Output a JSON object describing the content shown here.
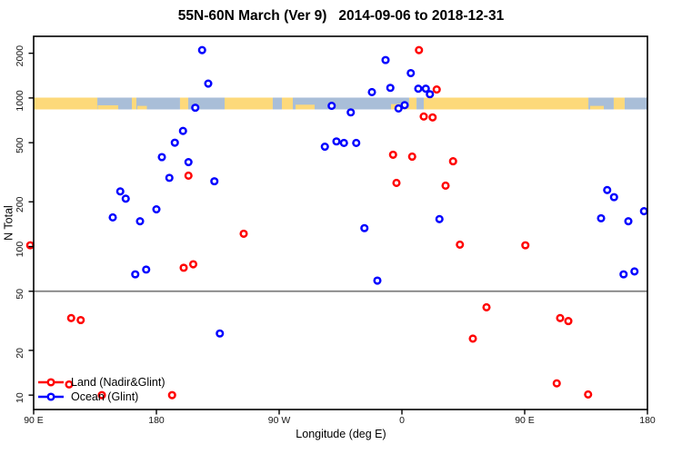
{
  "title": "55N-60N March (Ver 9)   2014-09-06 to 2018-12-31",
  "legend": {
    "entries": [
      {
        "label": "Land (Nadir&Glint)",
        "color": "#FF0000"
      },
      {
        "label": "Ocean (Glint)",
        "color": "#0000FF"
      }
    ]
  },
  "chart_data": {
    "type": "scatter",
    "title": "55N-60N March (Ver 9)   2014-09-06 to 2018-12-31",
    "xlabel": "Longitude (deg E)",
    "ylabel": "N Total",
    "x_axis": {
      "range": [
        90,
        540
      ],
      "ticks": [
        90,
        180,
        270,
        360,
        450,
        540
      ],
      "labels": [
        "90 E",
        "180",
        "90 W",
        "0",
        "90 E",
        "180"
      ]
    },
    "y_axis": {
      "scale": "log",
      "range": [
        8,
        2600
      ],
      "ticks": [
        10,
        20,
        50,
        100,
        200,
        500,
        1000,
        2000
      ]
    },
    "grid": "off",
    "legend_position": "bottom-left",
    "reference_line": {
      "y": 50,
      "color": "#7E7E7E"
    },
    "map_band": {
      "description": "land/ocean strip for 55N-60N drawn near N=1000",
      "land_color": "#FDD97A",
      "ocean_color": "#A9BED8",
      "segments": [
        {
          "from": 90,
          "to": 136.7,
          "type": "land"
        },
        {
          "from": 136.7,
          "to": 162,
          "type": "ocean"
        },
        {
          "from": 162,
          "to": 165.3,
          "type": "land"
        },
        {
          "from": 165.3,
          "to": 197.3,
          "type": "ocean"
        },
        {
          "from": 197.3,
          "to": 203.3,
          "type": "land"
        },
        {
          "from": 203.3,
          "to": 230,
          "type": "ocean"
        },
        {
          "from": 230,
          "to": 265.3,
          "type": "land"
        },
        {
          "from": 265.3,
          "to": 272,
          "type": "ocean"
        },
        {
          "from": 272,
          "to": 280,
          "type": "land"
        },
        {
          "from": 280,
          "to": 365.3,
          "type": "ocean"
        },
        {
          "from": 365.3,
          "to": 370.7,
          "type": "land"
        },
        {
          "from": 370.7,
          "to": 376,
          "type": "ocean"
        },
        {
          "from": 376,
          "to": 496.7,
          "type": "land"
        },
        {
          "from": 496.7,
          "to": 515.3,
          "type": "ocean"
        },
        {
          "from": 515.3,
          "to": 523.3,
          "type": "land"
        },
        {
          "from": 523.3,
          "to": 540,
          "type": "ocean"
        }
      ],
      "coast_patches": [
        {
          "from": 137,
          "to": 152,
          "h": 0.35
        },
        {
          "from": 166,
          "to": 173,
          "h": 0.3
        },
        {
          "from": 282,
          "to": 296,
          "h": 0.4
        },
        {
          "from": 352,
          "to": 365,
          "h": 0.45
        },
        {
          "from": 430,
          "to": 442,
          "h": 0.3
        },
        {
          "from": 498,
          "to": 508,
          "h": 0.3
        }
      ]
    },
    "series": [
      {
        "name": "Land (Nadir&Glint)",
        "color": "#FF0000",
        "points": [
          [
            372.5,
            2100
          ],
          [
            385.5,
            1140
          ],
          [
            376,
            750
          ],
          [
            382.5,
            740
          ],
          [
            353.5,
            415
          ],
          [
            367.5,
            403
          ],
          [
            397.5,
            375
          ],
          [
            203.5,
            300
          ],
          [
            356,
            268
          ],
          [
            392,
            257
          ],
          [
            244,
            122
          ],
          [
            87.5,
            102
          ],
          [
            450.5,
            102
          ],
          [
            402.5,
            103
          ],
          [
            200,
            72
          ],
          [
            207,
            76
          ],
          [
            117.5,
            33
          ],
          [
            124.5,
            32
          ],
          [
            422,
            39
          ],
          [
            412,
            24
          ],
          [
            476,
            33
          ],
          [
            482,
            31.5
          ],
          [
            473.5,
            12
          ],
          [
            496.5,
            10.1
          ],
          [
            116,
            11.8
          ],
          [
            140,
            10
          ],
          [
            191.5,
            10
          ]
        ]
      },
      {
        "name": "Ocean (Glint)",
        "color": "#0000FF",
        "points": [
          [
            213.5,
            2100
          ],
          [
            218,
            1250
          ],
          [
            208.5,
            860
          ],
          [
            199.5,
            600
          ],
          [
            193.5,
            500
          ],
          [
            184,
            400
          ],
          [
            203.5,
            370
          ],
          [
            189.5,
            290
          ],
          [
            222.5,
            275
          ],
          [
            153.5,
            235
          ],
          [
            157.5,
            210
          ],
          [
            180,
            178
          ],
          [
            148,
            157
          ],
          [
            168,
            148
          ],
          [
            164.5,
            65
          ],
          [
            172.5,
            70
          ],
          [
            226.5,
            26
          ],
          [
            308.5,
            885
          ],
          [
            322.5,
            800
          ],
          [
            303.5,
            470
          ],
          [
            312,
            510
          ],
          [
            317.5,
            498
          ],
          [
            326.5,
            498
          ],
          [
            338,
            1095
          ],
          [
            348,
            1800
          ],
          [
            351.5,
            1170
          ],
          [
            366.5,
            1470
          ],
          [
            372,
            1155
          ],
          [
            377.5,
            1155
          ],
          [
            380.5,
            1060
          ],
          [
            357.5,
            850
          ],
          [
            362,
            895
          ],
          [
            332.5,
            133
          ],
          [
            387.5,
            153
          ],
          [
            342,
            59
          ],
          [
            510.5,
            240
          ],
          [
            515.5,
            215
          ],
          [
            506,
            155
          ],
          [
            526,
            148
          ],
          [
            537.5,
            173
          ],
          [
            522.5,
            65
          ],
          [
            530.5,
            68
          ]
        ]
      }
    ]
  }
}
